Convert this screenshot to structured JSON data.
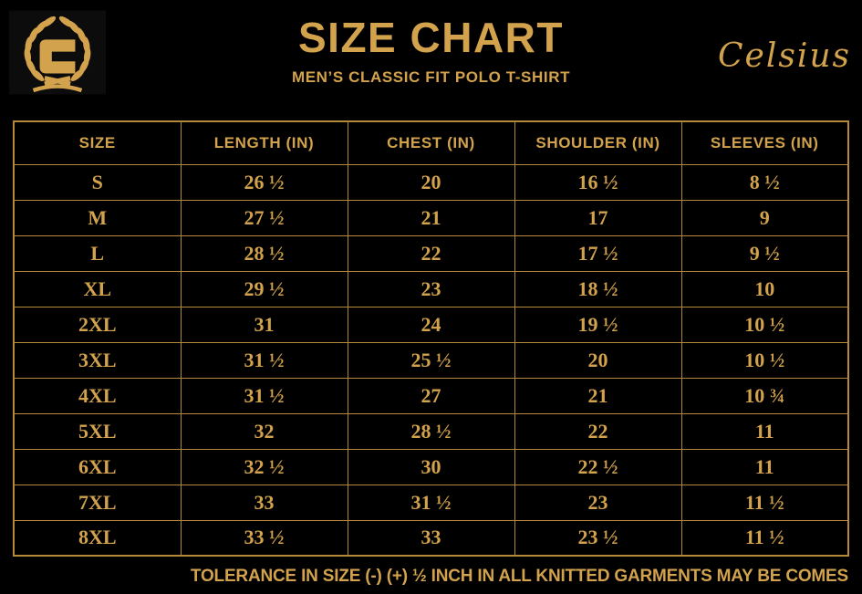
{
  "header": {
    "logo": {
      "monogram": "C"
    },
    "title": "SIZE CHART",
    "subtitle": "MEN’S CLASSIC FIT POLO T-SHIRT",
    "brand_signature": "Celsius"
  },
  "chart_data": {
    "type": "table",
    "title": "SIZE CHART",
    "subtitle": "MEN’S CLASSIC FIT POLO T-SHIRT",
    "columns": [
      "SIZE",
      "LENGTH (IN)",
      "CHEST (IN)",
      "SHOULDER (IN)",
      "SLEEVES (IN)"
    ],
    "rows": [
      [
        "S",
        "26 ½",
        "20",
        "16 ½",
        "8 ½"
      ],
      [
        "M",
        "27 ½",
        "21",
        "17",
        "9"
      ],
      [
        "L",
        "28 ½",
        "22",
        "17 ½",
        "9 ½"
      ],
      [
        "XL",
        "29 ½",
        "23",
        "18 ½",
        "10"
      ],
      [
        "2XL",
        "31",
        "24",
        "19 ½",
        "10 ½"
      ],
      [
        "3XL",
        "31 ½",
        "25 ½",
        "20",
        "10 ½"
      ],
      [
        "4XL",
        "31 ½",
        "27",
        "21",
        "10 ¾"
      ],
      [
        "5XL",
        "32",
        "28 ½",
        "22",
        "11"
      ],
      [
        "6XL",
        "32 ½",
        "30",
        "22 ½",
        "11"
      ],
      [
        "7XL",
        "33",
        "31 ½",
        "23",
        "11 ½"
      ],
      [
        "8XL",
        "33 ½",
        "33",
        "23 ½",
        "11 ½"
      ]
    ]
  },
  "footer": {
    "tolerance_note": "TOLERANCE IN SIZE (-) (+)  ½ INCH IN ALL KNITTED GARMENTS MAY BE COMES"
  },
  "colors": {
    "background": "#000000",
    "gold_text": "#D2A24C",
    "border_gold": "#B5893A",
    "logo_bg": "#0C0C0C"
  }
}
